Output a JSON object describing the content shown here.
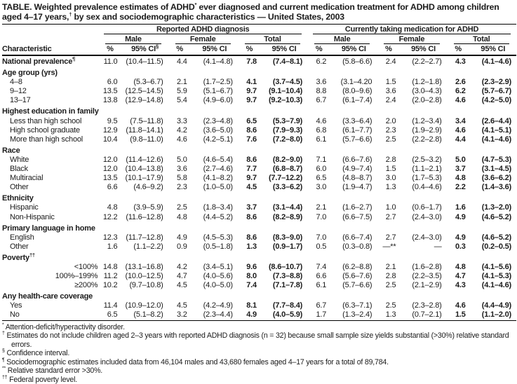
{
  "title": {
    "p1": "TABLE. Weighted prevalence estimates of ADHD",
    "sup1": "*",
    "p2": " ever diagnosed and current medication treatment for ADHD among children aged 4–17 years,",
    "sup2": "†",
    "p3": " by sex and sociodemographic characteristics — United States, 2003"
  },
  "table": {
    "header": {
      "characteristic": "Characteristic",
      "group1": "Reported ADHD diagnosis",
      "group2": "Currently taking medication for ADHD",
      "sub": [
        "Male",
        "Female",
        "Total"
      ],
      "pct": "%",
      "ci": "95% CI",
      "ci_sup": "§"
    },
    "rows": [
      {
        "type": "data",
        "label": "National prevalence",
        "label_sup": "¶",
        "bold": true,
        "indent": 0,
        "first": true,
        "values": [
          "11.0",
          "(10.4–11.5)",
          "4.4",
          "(4.1–4.8)",
          "7.8",
          "(7.4–8.1)",
          "6.2",
          "(5.8–6.6)",
          "2.4",
          "(2.2–2.7)",
          "4.3",
          "(4.1–4.6)"
        ]
      },
      {
        "type": "section",
        "label": "Age group (yrs)"
      },
      {
        "type": "data",
        "label": "4–8",
        "indent": 1,
        "values": [
          "6.0",
          "(5.3–6.7)",
          "2.1",
          "(1.7–2.5)",
          "4.1",
          "(3.7–4.5)",
          "3.6",
          "(3.1–4.20",
          "1.5",
          "(1.2–1.8)",
          "2.6",
          "(2.3–2.9)"
        ]
      },
      {
        "type": "data",
        "label": "9–12",
        "indent": 1,
        "values": [
          "13.5",
          "(12.5–14.5)",
          "5.9",
          "(5.1–6.7)",
          "9.7",
          "(9.1–10.4)",
          "8.8",
          "(8.0–9.6)",
          "3.6",
          "(3.0–4.3)",
          "6.2",
          "(5.7–6.7)"
        ]
      },
      {
        "type": "data",
        "label": "13–17",
        "indent": 1,
        "values": [
          "13.8",
          "(12.9–14.8)",
          "5.4",
          "(4.9–6.0)",
          "9.7",
          "(9.2–10.3)",
          "6.7",
          "(6.1–7.4)",
          "2.4",
          "(2.0–2.8)",
          "4.6",
          "(4.2–5.0)"
        ]
      },
      {
        "type": "section",
        "label": "Highest education in family"
      },
      {
        "type": "data",
        "label": "Less than high school",
        "indent": 1,
        "values": [
          "9.5",
          "(7.5–11.8)",
          "3.3",
          "(2.3–4.8)",
          "6.5",
          "(5.3–7.9)",
          "4.6",
          "(3.3–6.4)",
          "2.0",
          "(1.2–3.4)",
          "3.4",
          "(2.6–4.4)"
        ]
      },
      {
        "type": "data",
        "label": "High school graduate",
        "indent": 1,
        "values": [
          "12.9",
          "(11.8–14.1)",
          "4.2",
          "(3.6–5.0)",
          "8.6",
          "(7.9–9.3)",
          "6.8",
          "(6.1–7.7)",
          "2.3",
          "(1.9–2.9)",
          "4.6",
          "(4.1–5.1)"
        ]
      },
      {
        "type": "data",
        "label": "More than high school",
        "indent": 1,
        "values": [
          "10.4",
          "(9.8–11.0)",
          "4.6",
          "(4.2–5.1)",
          "7.6",
          "(7.2–8.0)",
          "6.1",
          "(5.7–6.6)",
          "2.5",
          "(2.2–2.8)",
          "4.4",
          "(4.1–4.6)"
        ]
      },
      {
        "type": "section",
        "label": "Race"
      },
      {
        "type": "data",
        "label": "White",
        "indent": 1,
        "values": [
          "12.0",
          "(11.4–12.6)",
          "5.0",
          "(4.6–5.4)",
          "8.6",
          "(8.2–9.0)",
          "7.1",
          "(6.6–7.6)",
          "2.8",
          "(2.5–3.2)",
          "5.0",
          "(4.7–5.3)"
        ]
      },
      {
        "type": "data",
        "label": "Black",
        "indent": 1,
        "values": [
          "12.0",
          "(10.4–13.8)",
          "3.6",
          "(2.7–4.6)",
          "7.7",
          "(6.8–8.7)",
          "6.0",
          "(4.9–7.4)",
          "1.5",
          "(1.1–2.1)",
          "3.7",
          "(3.1–4.5)"
        ]
      },
      {
        "type": "data",
        "label": "Multiracial",
        "indent": 1,
        "values": [
          "13.5",
          "(10.1–17.9)",
          "5.8",
          "(4.1–8.2)",
          "9.7",
          "(7.7–12.2)",
          "6.5",
          "(4.8–8.7)",
          "3.0",
          "(1.7–5.3)",
          "4.8",
          "(3.6–6.2)"
        ]
      },
      {
        "type": "data",
        "label": "Other",
        "indent": 1,
        "values": [
          "6.6",
          "(4.6–9.2)",
          "2.3",
          "(1.0–5.0)",
          "4.5",
          "(3.3–6.2)",
          "3.0",
          "(1.9–4.7)",
          "1.3",
          "(0.4–4.6)",
          "2.2",
          "(1.4–3.6)"
        ]
      },
      {
        "type": "section",
        "label": "Ethnicity"
      },
      {
        "type": "data",
        "label": "Hispanic",
        "indent": 1,
        "values": [
          "4.8",
          "(3.9–5.9)",
          "2.5",
          "(1.8–3.4)",
          "3.7",
          "(3.1–4.4)",
          "2.1",
          "(1.6–2.7)",
          "1.0",
          "(0.6–1.7)",
          "1.6",
          "(1.3–2.0)"
        ]
      },
      {
        "type": "data",
        "label": "Non-Hispanic",
        "indent": 1,
        "values": [
          "12.2",
          "(11.6–12.8)",
          "4.8",
          "(4.4–5.2)",
          "8.6",
          "(8.2–8.9)",
          "7.0",
          "(6.6–7.5)",
          "2.7",
          "(2.4–3.0)",
          "4.9",
          "(4.6–5.2)"
        ]
      },
      {
        "type": "section",
        "label": "Primary language in home"
      },
      {
        "type": "data",
        "label": "English",
        "indent": 1,
        "values": [
          "12.3",
          "(11.7–12.8)",
          "4.9",
          "(4.5–5.3)",
          "8.6",
          "(8.3–9.0)",
          "7.0",
          "(6.6–7.4)",
          "2.7",
          "(2.4–3.0)",
          "4.9",
          "(4.6–5.2)"
        ]
      },
      {
        "type": "data",
        "label": "Other",
        "indent": 1,
        "values": [
          "1.6",
          "(1.1–2.2)",
          "0.9",
          "(0.5–1.8)",
          "1.3",
          "(0.9–1.7)",
          "0.5",
          "(0.3–0.8)",
          "—**",
          "—",
          "0.3",
          "(0.2–0.5)"
        ]
      },
      {
        "type": "section",
        "label": "Poverty",
        "label_sup": "††"
      },
      {
        "type": "data",
        "label": "<100%",
        "align": "right",
        "values": [
          "14.8",
          "(13.1–16.8)",
          "4.2",
          "(3.4–5.1)",
          "9.6",
          "(8.6–10.7)",
          "7.4",
          "(6.2–8.8)",
          "2.1",
          "(1.6–2.8)",
          "4.8",
          "(4.1–5.6)"
        ]
      },
      {
        "type": "data",
        "label": "100%–199%",
        "align": "right",
        "values": [
          "11.2",
          "(10.0–12.5)",
          "4.7",
          "(4.0–5.6)",
          "8.0",
          "(7.3–8.8)",
          "6.6",
          "(5.6–7.6)",
          "2.8",
          "(2.2–3.5)",
          "4.7",
          "(4.1–5.3)"
        ]
      },
      {
        "type": "data",
        "label": "≥200%",
        "align": "right",
        "values": [
          "10.2",
          "(9.7–10.8)",
          "4.5",
          "(4.0–5.0)",
          "7.4",
          "(7.1–7.8)",
          "6.1",
          "(5.7–6.6)",
          "2.5",
          "(2.1–2.9)",
          "4.3",
          "(4.1–4.6)"
        ]
      },
      {
        "type": "section",
        "label": "Any health-care coverage"
      },
      {
        "type": "data",
        "label": "Yes",
        "indent": 1,
        "values": [
          "11.4",
          "(10.9–12.0)",
          "4.5",
          "(4.2–4.9)",
          "8.1",
          "(7.7–8.4)",
          "6.7",
          "(6.3–7.1)",
          "2.5",
          "(2.3–2.8)",
          "4.6",
          "(4.4–4.9)"
        ]
      },
      {
        "type": "data",
        "label": "No",
        "indent": 1,
        "values": [
          "6.5",
          "(5.1–8.2)",
          "3.2",
          "(2.3–4.4)",
          "4.9",
          "(4.0–5.9)",
          "1.7",
          "(1.3–2.4)",
          "1.3",
          "(0.7–2.1)",
          "1.5",
          "(1.1–2.0)"
        ]
      }
    ]
  },
  "footnotes": [
    {
      "marker": "*",
      "text": "Attention-deficit/hyperactivity disorder."
    },
    {
      "marker": "†",
      "text": "Estimates do not include children aged 2–3 years with reported ADHD diagnosis (n = 32) because small sample size yields substantial (>30%) relative standard errors."
    },
    {
      "marker": "§",
      "text": "Confidence interval."
    },
    {
      "marker": "¶",
      "text": "Sociodemographic estimates included data from 46,104 males and 43,680 females aged 4–17 years for a total of 89,784."
    },
    {
      "marker": "**",
      "text": "Relative standard error >30%."
    },
    {
      "marker": "††",
      "text": "Federal poverty level."
    }
  ]
}
